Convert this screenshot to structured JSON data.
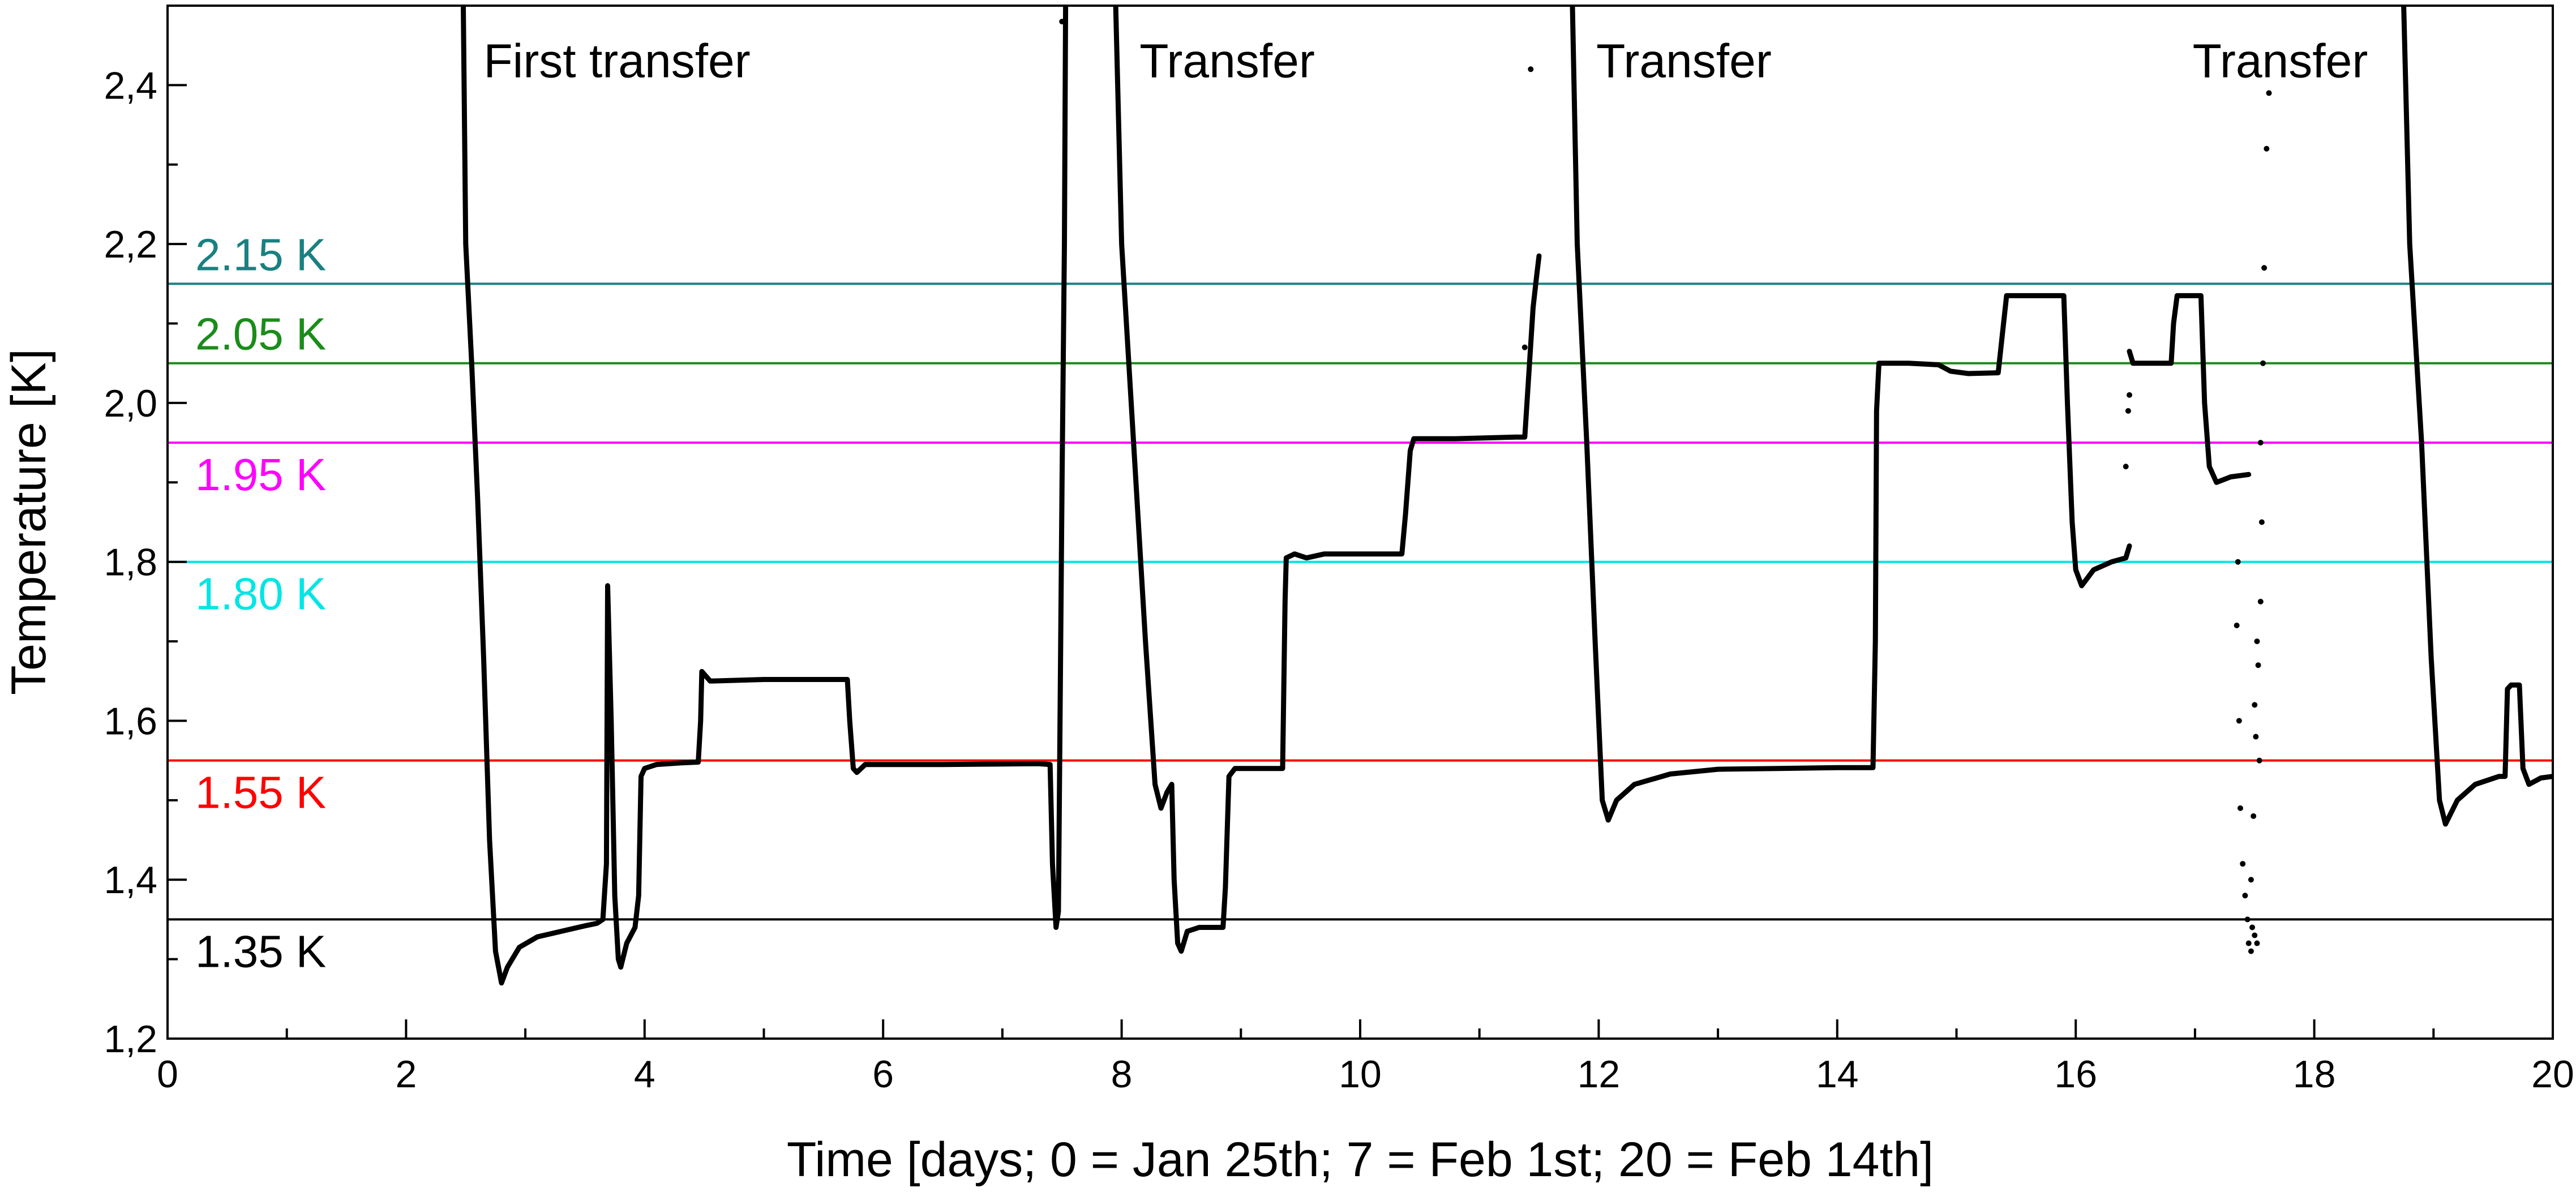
{
  "chart_data": {
    "type": "line",
    "title": "",
    "xlabel": "Time [days; 0 = Jan 25th; 7 = Feb 1st; 20 = Feb 14th]",
    "ylabel": "Temperature [K]",
    "xlim": [
      0,
      20
    ],
    "ylim": [
      1.2,
      2.5
    ],
    "x_ticks": [
      0,
      2,
      4,
      6,
      8,
      10,
      12,
      14,
      16,
      18,
      20
    ],
    "x_tick_labels": [
      "0",
      "2",
      "4",
      "6",
      "8",
      "10",
      "12",
      "14",
      "16",
      "18",
      "20"
    ],
    "y_ticks": [
      1.2,
      1.4,
      1.6,
      1.8,
      2.0,
      2.2,
      2.4
    ],
    "y_tick_labels": [
      "1,2",
      "1,4",
      "1,6",
      "1,8",
      "2,0",
      "2,2",
      "2,4"
    ],
    "grid": false,
    "reference_lines": [
      {
        "label": "2.15 K",
        "y": 2.15,
        "color": "#1a8080"
      },
      {
        "label": "2.05 K",
        "y": 2.05,
        "color": "#1a8c1a"
      },
      {
        "label": "1.95 K",
        "y": 1.95,
        "color": "#ff00ff"
      },
      {
        "label": "1.80 K",
        "y": 1.8,
        "color": "#00e5e5"
      },
      {
        "label": "1.55 K",
        "y": 1.55,
        "color": "#ff0000"
      },
      {
        "label": "1.35 K",
        "y": 1.35,
        "color": "#000000"
      }
    ],
    "annotations": [
      {
        "text": "First transfer",
        "x": 2.65,
        "y": 2.41
      },
      {
        "text": "Transfer",
        "x": 8.15,
        "y": 2.41
      },
      {
        "text": "Transfer",
        "x": 11.98,
        "y": 2.41
      },
      {
        "text": "Transfer",
        "x": 16.98,
        "y": 2.41
      }
    ],
    "series": [
      {
        "color": "#000000",
        "segments": [
          [
            [
              2.48,
              2.5
            ],
            [
              2.5,
              2.2
            ],
            [
              2.55,
              2.05
            ],
            [
              2.6,
              1.88
            ],
            [
              2.65,
              1.68
            ],
            [
              2.7,
              1.45
            ],
            [
              2.75,
              1.31
            ],
            [
              2.8,
              1.27
            ],
            [
              2.85,
              1.29
            ],
            [
              2.95,
              1.315
            ],
            [
              3.1,
              1.328
            ],
            [
              3.3,
              1.335
            ],
            [
              3.5,
              1.342
            ],
            [
              3.6,
              1.345
            ],
            [
              3.65,
              1.35
            ],
            [
              3.68,
              1.42
            ],
            [
              3.69,
              1.77
            ],
            [
              3.72,
              1.6
            ],
            [
              3.75,
              1.38
            ],
            [
              3.78,
              1.3
            ],
            [
              3.8,
              1.29
            ],
            [
              3.85,
              1.32
            ],
            [
              3.92,
              1.34
            ],
            [
              3.95,
              1.38
            ],
            [
              3.97,
              1.53
            ],
            [
              4.0,
              1.54
            ],
            [
              4.1,
              1.545
            ],
            [
              4.3,
              1.547
            ],
            [
              4.45,
              1.548
            ],
            [
              4.47,
              1.6
            ],
            [
              4.48,
              1.662
            ],
            [
              4.55,
              1.65
            ],
            [
              5.0,
              1.652
            ],
            [
              5.5,
              1.652
            ],
            [
              5.7,
              1.652
            ],
            [
              5.72,
              1.6
            ],
            [
              5.75,
              1.54
            ],
            [
              5.78,
              1.535
            ],
            [
              5.85,
              1.545
            ],
            [
              6.5,
              1.545
            ],
            [
              7.3,
              1.546
            ],
            [
              7.4,
              1.545
            ],
            [
              7.42,
              1.42
            ],
            [
              7.45,
              1.34
            ],
            [
              7.47,
              1.36
            ],
            [
              7.5,
              1.9
            ],
            [
              7.52,
              2.2
            ],
            [
              7.53,
              2.5
            ]
          ],
          [
            [
              7.95,
              2.5
            ],
            [
              8.0,
              2.2
            ],
            [
              8.1,
              1.95
            ],
            [
              8.2,
              1.7
            ],
            [
              8.28,
              1.52
            ],
            [
              8.33,
              1.49
            ],
            [
              8.38,
              1.51
            ],
            [
              8.42,
              1.52
            ],
            [
              8.44,
              1.4
            ],
            [
              8.47,
              1.32
            ],
            [
              8.5,
              1.31
            ],
            [
              8.55,
              1.335
            ],
            [
              8.65,
              1.34
            ],
            [
              8.85,
              1.34
            ],
            [
              8.87,
              1.39
            ],
            [
              8.9,
              1.53
            ],
            [
              8.95,
              1.54
            ],
            [
              9.2,
              1.54
            ],
            [
              9.35,
              1.54
            ],
            [
              9.37,
              1.75
            ],
            [
              9.38,
              1.805
            ],
            [
              9.45,
              1.81
            ],
            [
              9.55,
              1.805
            ],
            [
              9.7,
              1.81
            ],
            [
              10.2,
              1.81
            ],
            [
              10.35,
              1.81
            ],
            [
              10.38,
              1.86
            ],
            [
              10.42,
              1.94
            ],
            [
              10.45,
              1.955
            ],
            [
              10.8,
              1.955
            ],
            [
              11.3,
              1.957
            ],
            [
              11.38,
              1.957
            ],
            [
              11.42,
              2.05
            ],
            [
              11.45,
              2.12
            ],
            [
              11.48,
              2.16
            ],
            [
              11.5,
              2.185
            ]
          ],
          [
            [
              11.78,
              2.5
            ],
            [
              11.82,
              2.2
            ],
            [
              11.9,
              1.95
            ],
            [
              11.97,
              1.7
            ],
            [
              12.03,
              1.5
            ],
            [
              12.08,
              1.475
            ],
            [
              12.15,
              1.5
            ],
            [
              12.3,
              1.52
            ],
            [
              12.6,
              1.533
            ],
            [
              13.0,
              1.539
            ],
            [
              13.5,
              1.54
            ],
            [
              14.0,
              1.541
            ],
            [
              14.3,
              1.541
            ],
            [
              14.32,
              1.7
            ],
            [
              14.33,
              1.99
            ],
            [
              14.35,
              2.05
            ],
            [
              14.6,
              2.05
            ],
            [
              14.85,
              2.048
            ],
            [
              14.95,
              2.04
            ],
            [
              15.1,
              2.037
            ],
            [
              15.35,
              2.038
            ],
            [
              15.38,
              2.08
            ],
            [
              15.42,
              2.135
            ],
            [
              15.6,
              2.135
            ],
            [
              15.9,
              2.135
            ],
            [
              15.93,
              2.0
            ],
            [
              15.97,
              1.85
            ],
            [
              16.0,
              1.79
            ],
            [
              16.05,
              1.77
            ],
            [
              16.15,
              1.79
            ],
            [
              16.3,
              1.8
            ],
            [
              16.42,
              1.805
            ],
            [
              16.45,
              1.82
            ]
          ],
          [
            [
              16.45,
              2.065
            ],
            [
              16.48,
              2.05
            ],
            [
              16.8,
              2.05
            ],
            [
              16.82,
              2.1
            ],
            [
              16.85,
              2.135
            ],
            [
              17.05,
              2.135
            ],
            [
              17.08,
              2.0
            ],
            [
              17.12,
              1.92
            ],
            [
              17.18,
              1.9
            ],
            [
              17.3,
              1.907
            ],
            [
              17.45,
              1.91
            ]
          ],
          [
            [
              18.75,
              2.5
            ],
            [
              18.8,
              2.2
            ],
            [
              18.9,
              1.95
            ],
            [
              18.98,
              1.68
            ],
            [
              19.05,
              1.5
            ],
            [
              19.1,
              1.47
            ],
            [
              19.2,
              1.5
            ],
            [
              19.35,
              1.52
            ],
            [
              19.55,
              1.53
            ],
            [
              19.6,
              1.53
            ],
            [
              19.62,
              1.64
            ],
            [
              19.65,
              1.645
            ],
            [
              19.72,
              1.645
            ],
            [
              19.75,
              1.54
            ],
            [
              19.8,
              1.52
            ],
            [
              19.9,
              1.528
            ],
            [
              20.0,
              1.53
            ]
          ]
        ],
        "scatter_points": [
          [
            7.5,
            2.48
          ],
          [
            11.43,
            2.42
          ],
          [
            11.38,
            2.07
          ],
          [
            16.42,
            1.92
          ],
          [
            16.44,
            1.99
          ],
          [
            16.45,
            2.01
          ],
          [
            17.35,
            1.72
          ],
          [
            17.37,
            1.6
          ],
          [
            17.38,
            1.49
          ],
          [
            17.4,
            1.42
          ],
          [
            17.42,
            1.38
          ],
          [
            17.44,
            1.35
          ],
          [
            17.45,
            1.32
          ],
          [
            17.47,
            1.31
          ],
          [
            17.5,
            1.33
          ],
          [
            17.52,
            1.32
          ],
          [
            17.48,
            1.34
          ],
          [
            17.47,
            1.4
          ],
          [
            17.49,
            1.48
          ],
          [
            17.51,
            1.58
          ],
          [
            17.53,
            1.67
          ],
          [
            17.55,
            1.75
          ],
          [
            17.56,
            1.85
          ],
          [
            17.57,
            2.05
          ],
          [
            17.58,
            2.17
          ],
          [
            17.6,
            2.32
          ],
          [
            17.62,
            2.39
          ],
          [
            17.5,
            1.62
          ],
          [
            17.52,
            1.7
          ],
          [
            17.54,
            1.55
          ],
          [
            17.36,
            1.8
          ],
          [
            17.55,
            1.95
          ]
        ]
      }
    ]
  }
}
